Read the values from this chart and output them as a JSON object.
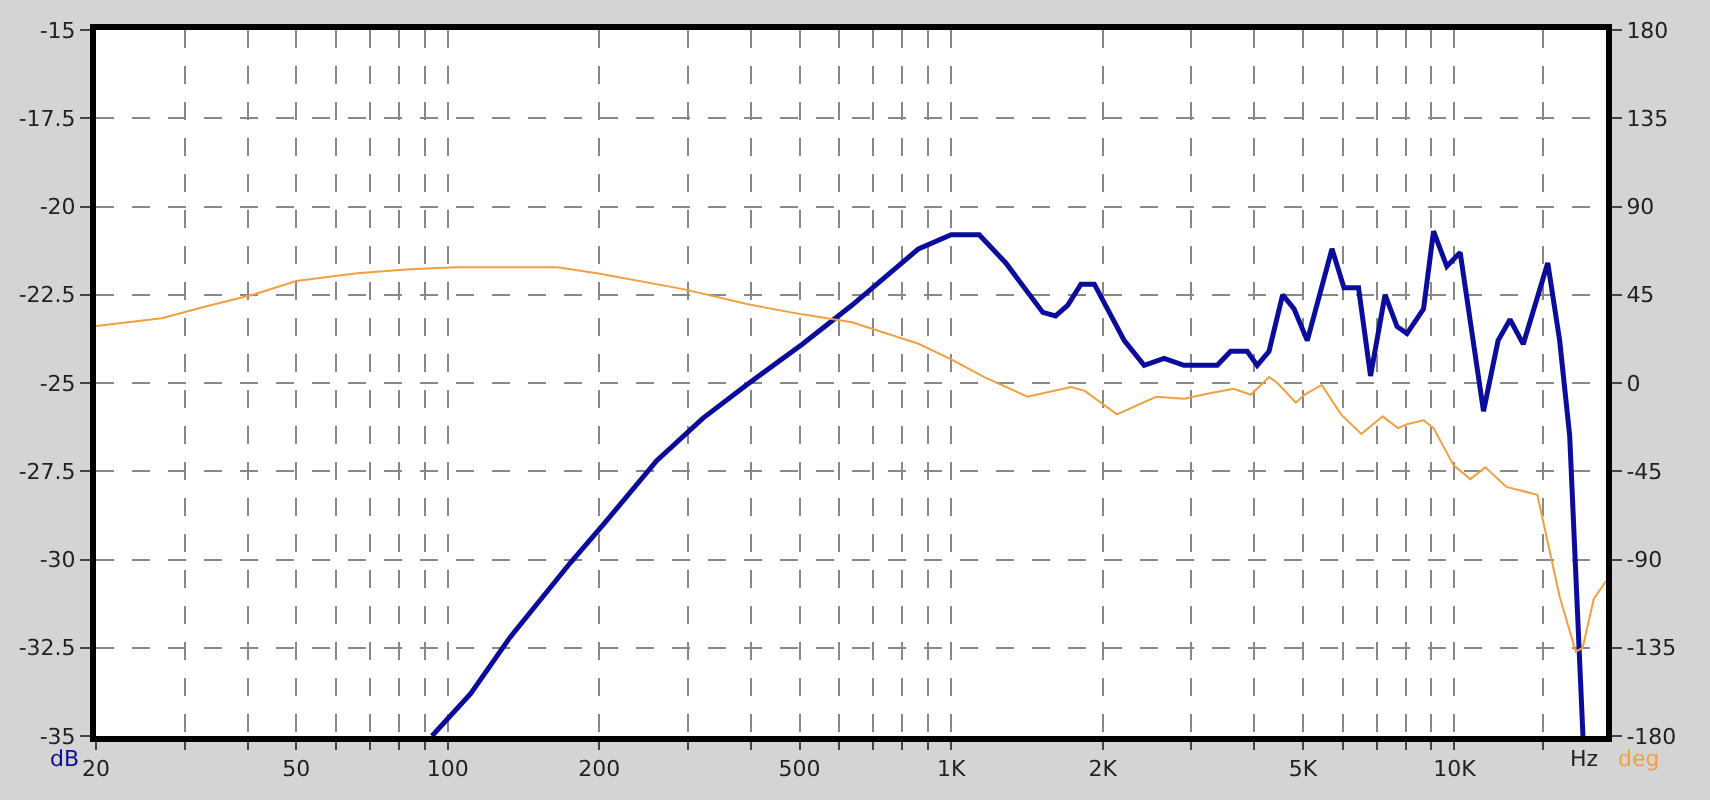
{
  "chart_data": {
    "type": "line",
    "xlabel": "Hz",
    "ylabel": "dB",
    "y2label": "deg",
    "log": "x",
    "grid": true,
    "xlim": [
      20,
      20000
    ],
    "xticks": [
      20,
      {
        "value": 30,
        "label": null
      },
      {
        "value": 40,
        "label": null
      },
      50,
      {
        "value": 60,
        "label": null
      },
      {
        "value": 70,
        "label": null
      },
      {
        "value": 80,
        "label": null
      },
      {
        "value": 90,
        "label": null
      },
      100,
      200,
      {
        "value": 300,
        "label": null
      },
      {
        "value": 400,
        "label": null
      },
      500,
      {
        "value": 600,
        "label": null
      },
      {
        "value": 700,
        "label": null
      },
      {
        "value": 800,
        "label": null
      },
      {
        "value": 900,
        "label": null
      },
      {
        "value": 1000,
        "label": "1K"
      },
      {
        "value": 2000,
        "label": "2K"
      },
      {
        "value": 3000,
        "label": null
      },
      {
        "value": 4000,
        "label": null
      },
      {
        "value": 5000,
        "label": "5K"
      },
      {
        "value": 6000,
        "label": null
      },
      {
        "value": 7000,
        "label": null
      },
      {
        "value": 8000,
        "label": null
      },
      {
        "value": 9000,
        "label": null
      },
      {
        "value": 10000,
        "label": "10K"
      },
      {
        "value": 15000,
        "label": null
      }
    ],
    "ylim": [
      -35,
      -15
    ],
    "yticks": [
      -35,
      -32.5,
      -30,
      -27.5,
      -25,
      -22.5,
      -20,
      -17.5,
      -15
    ],
    "y2lim": [
      -180,
      180
    ],
    "y2ticks": [
      -180,
      -135,
      -90,
      -45,
      0,
      45,
      90,
      135,
      180
    ],
    "series": [
      {
        "color": "#0c0c9c",
        "x": [
          93,
          111,
          133,
          175,
          204,
          260,
          321,
          397,
          506,
          635,
          861,
          1000,
          1137,
          1284,
          1521,
          1612,
          1704,
          1811,
          1925,
          2208,
          2418,
          2649,
          2901,
          3379,
          3592,
          3874,
          4055,
          4281,
          4556,
          4800,
          5100,
          5710,
          6032,
          6447,
          6811,
          7279,
          7689,
          8047,
          8681,
          9086,
          9656,
          10263,
          11420,
          12206,
          12893,
          13696,
          15321,
          16181,
          16940,
          18000
        ],
        "values": [
          -35.0,
          -33.8,
          -32.2,
          -30.1,
          -29.0,
          -27.2,
          -26.0,
          -25.0,
          -23.9,
          -22.8,
          -21.2,
          -20.8,
          -20.8,
          -21.6,
          -23.0,
          -23.1,
          -22.8,
          -22.2,
          -22.2,
          -23.8,
          -24.5,
          -24.3,
          -24.5,
          -24.5,
          -24.1,
          -24.1,
          -24.5,
          -24.1,
          -22.5,
          -22.9,
          -23.8,
          -21.2,
          -22.3,
          -22.3,
          -24.8,
          -22.5,
          -23.4,
          -23.6,
          -22.9,
          -20.7,
          -21.7,
          -21.3,
          -25.8,
          -23.8,
          -23.2,
          -23.9,
          -21.6,
          -23.8,
          -26.5,
          -35.0
        ]
      },
      {
        "color": "#f0a040",
        "axis": "y2",
        "x": [
          20,
          27,
          33,
          41,
          50,
          66,
          84,
          104,
          165,
          198,
          292,
          397,
          506,
          635,
          861,
          1000,
          1164,
          1418,
          1730,
          1843,
          2134,
          2555,
          2901,
          3300,
          3643,
          3940,
          4281,
          4450,
          4840,
          5030,
          5450,
          5950,
          6530,
          7200,
          7720,
          8047,
          8681,
          9086,
          9960,
          10750,
          11520,
          12680,
          14610,
          16181,
          17420,
          17970,
          18920,
          20000
        ],
        "values": [
          29,
          33,
          39,
          45,
          52,
          56,
          58,
          59,
          59,
          56,
          48,
          40,
          35,
          31,
          20,
          12,
          3,
          -7,
          -2,
          -4,
          -16,
          -7,
          -8,
          -5,
          -3,
          -6,
          3,
          0,
          -10,
          -6,
          -1,
          -16,
          -26,
          -17,
          -23,
          -21,
          -19,
          -23,
          -42,
          -49,
          -43,
          -53,
          -57,
          -109,
          -137,
          -135,
          -110,
          -101
        ]
      }
    ]
  }
}
